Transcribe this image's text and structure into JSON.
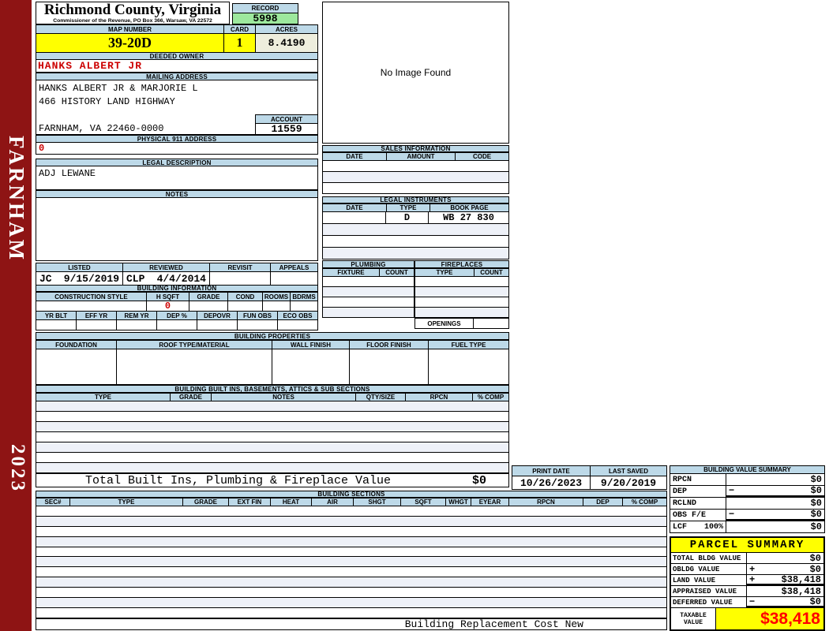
{
  "page": {
    "district": "FARNHAM",
    "year": "2023"
  },
  "header": {
    "title": "Richmond County, Virginia",
    "subtitle": "Commissioner of the Revenue, PO Box 366, Warsaw, VA 22572",
    "record_label": "RECORD",
    "record_value": "5998",
    "map_label": "MAP NUMBER",
    "map_value": "39-20D",
    "card_label": "CARD",
    "card_value": "1",
    "acres_label": "ACRES",
    "acres_value": "8.4190"
  },
  "owner": {
    "deeded_label": "DEEDED OWNER",
    "deeded_value": "HANKS ALBERT JR",
    "mailing_label": "MAILING ADDRESS",
    "mail_line1": "HANKS ALBERT JR & MARJORIE L",
    "mail_line2": "466 HISTORY LAND HIGHWAY",
    "mail_line3": "FARNHAM, VA 22460-0000",
    "account_label": "ACCOUNT",
    "account_value": "11559",
    "physical_label": "PHYSICAL 911 ADDRESS",
    "physical_value": "0",
    "legal_label": "LEGAL DESCRIPTION",
    "legal_value": "ADJ LEWANE",
    "notes_label": "NOTES"
  },
  "image_panel": {
    "text": "No Image Found"
  },
  "sales": {
    "title": "SALES INFORMATION",
    "col_date": "DATE",
    "col_amount": "AMOUNT",
    "col_code": "CODE"
  },
  "instruments": {
    "title": "LEGAL INSTRUMENTS",
    "col_date": "DATE",
    "col_type": "TYPE",
    "col_book": "BOOK PAGE",
    "row1_type": "D",
    "row1_book": "WB 27 830"
  },
  "plumbing": {
    "title": "PLUMBING",
    "col_fixture": "FIXTURE",
    "col_count": "COUNT"
  },
  "fireplaces": {
    "title": "FIREPLACES",
    "col_type": "TYPE",
    "col_count": "COUNT",
    "openings_label": "OPENINGS"
  },
  "review": {
    "listed_label": "LISTED",
    "reviewed_label": "REVIEWED",
    "revisit_label": "REVISIT",
    "appeals_label": "APPEALS",
    "listed_by": "JC",
    "listed_date": "9/15/2019",
    "reviewed_by": "CLP",
    "reviewed_date": "4/4/2014"
  },
  "building_info": {
    "title": "BUILDING INFORMATION",
    "cols1": [
      "CONSTRUCTION STYLE",
      "H SQFT",
      "GRADE",
      "COND",
      "ROOMS",
      "BDRMS"
    ],
    "hsqft_value": "0",
    "cols2": [
      "YR BLT",
      "EFF YR",
      "REM YR",
      "DEP %",
      "DEPOVR",
      "FUN OBS",
      "ECO OBS"
    ]
  },
  "building_props": {
    "title": "BUILDING PROPERTIES",
    "cols": [
      "FOUNDATION",
      "ROOF TYPE/MATERIAL",
      "WALL FINISH",
      "FLOOR FINISH",
      "FUEL TYPE"
    ]
  },
  "built_ins": {
    "title": "BUILDING BUILT INS, BASEMENTS, ATTICS & SUB SECTIONS",
    "cols": [
      "TYPE",
      "GRADE",
      "NOTES",
      "QTY/SIZE",
      "RPCN",
      "% COMP"
    ],
    "total_label": "Total Built Ins, Plumbing & Fireplace Value",
    "total_value": "$0"
  },
  "print_info": {
    "print_label": "PRINT DATE",
    "print_value": "10/26/2023",
    "saved_label": "LAST SAVED",
    "saved_value": "9/20/2019"
  },
  "sections": {
    "title": "BUILDING SECTIONS",
    "cols": [
      "SEC#",
      "TYPE",
      "GRADE",
      "EXT FIN",
      "HEAT",
      "AIR",
      "SHGT",
      "SQFT",
      "WHGT",
      "EYEAR",
      "RPCN",
      "DEP",
      "% COMP"
    ],
    "footer_note": "Building Replacement Cost New"
  },
  "bvs": {
    "title": "BUILDING VALUE SUMMARY",
    "rows": [
      {
        "label": "RPCN",
        "extra": "",
        "op": "",
        "value": "$0"
      },
      {
        "label": "DEP",
        "extra": "",
        "op": "−",
        "value": "$0"
      },
      {
        "label": "RCLND",
        "extra": "",
        "op": "",
        "value": "$0"
      },
      {
        "label": "OBS F/E",
        "extra": "",
        "op": "−",
        "value": "$0"
      },
      {
        "label": "LCF",
        "extra": "100%",
        "op": "",
        "value": "$0"
      }
    ]
  },
  "parcel": {
    "title": "PARCEL SUMMARY",
    "rows": [
      {
        "label": "TOTAL BLDG VALUE",
        "op": "",
        "value": "$0"
      },
      {
        "label": "OBLDG VALUE",
        "op": "+",
        "value": "$0"
      },
      {
        "label": "LAND VALUE",
        "op": "+",
        "value": "$38,418"
      },
      {
        "label": "APPRAISED VALUE",
        "op": "",
        "value": "$38,418"
      },
      {
        "label": "DEFERRED VALUE",
        "op": "−",
        "value": "$0"
      }
    ],
    "taxable_label": "TAXABLE VALUE",
    "taxable_value": "$38,418"
  },
  "colors": {
    "header_blue": "#bdd9e8",
    "record_green": "#9de89d",
    "highlight_yellow": "#ffff00",
    "acres_cream": "#eeeedd",
    "sidebar_maroon": "#8e1414",
    "red_text": "#cc0000",
    "taxable_red": "#ff0000"
  }
}
